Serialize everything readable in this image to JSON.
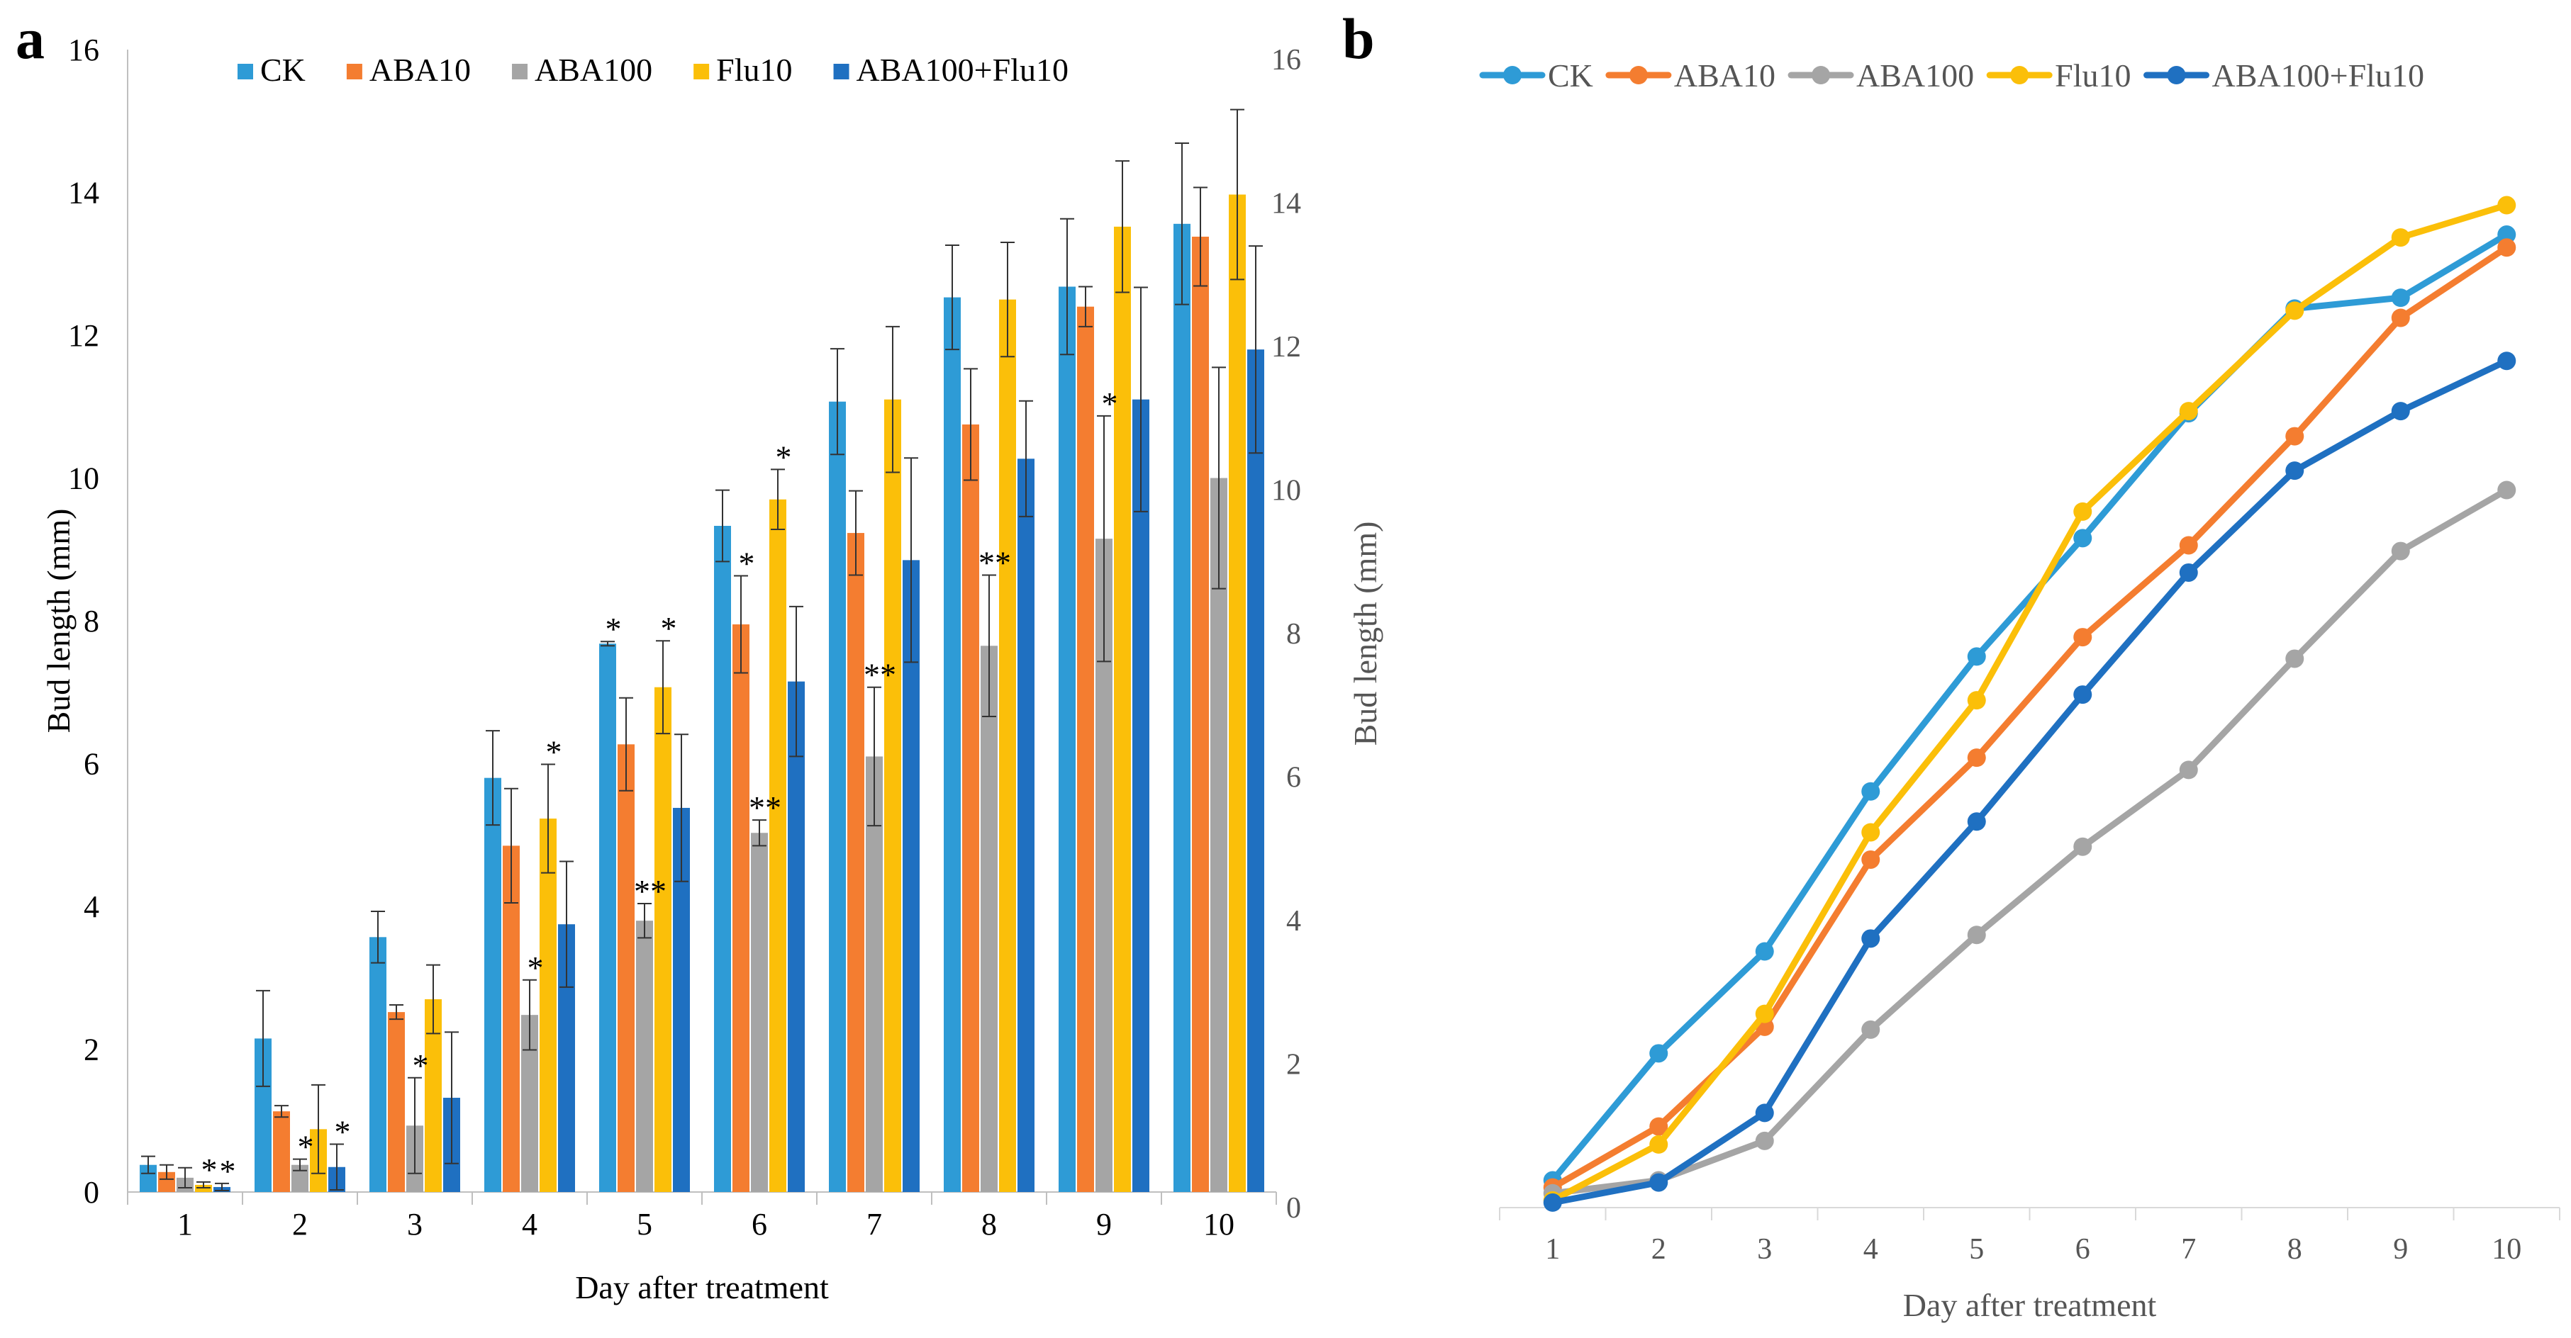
{
  "panels": {
    "a": {
      "letter": "a"
    },
    "b": {
      "letter": "b"
    }
  },
  "colors": {
    "CK": "#2e9bd6",
    "ABA10": "#f47d30",
    "ABA100": "#a5a5a5",
    "Flu10": "#fbbf09",
    "ABA100+Flu10": "#1f70c1"
  },
  "chart_data": [
    {
      "type": "bar",
      "title": "",
      "xlabel": "Day after treatment",
      "ylabel": "Bud length (mm)",
      "ylim": [
        0,
        16
      ],
      "yticks": [
        "0",
        "2",
        "4",
        "6",
        "8",
        "10",
        "12",
        "14",
        "16"
      ],
      "categories": [
        "1",
        "2",
        "3",
        "4",
        "5",
        "6",
        "7",
        "8",
        "9",
        "10"
      ],
      "legend": [
        "CK",
        "ABA10",
        "ABA100",
        "Flu10",
        "ABA100+Flu10"
      ],
      "legend_position": "top",
      "series": [
        {
          "name": "CK",
          "values": [
            0.38,
            2.15,
            3.57,
            5.8,
            7.68,
            9.33,
            11.07,
            12.53,
            12.68,
            13.56
          ],
          "errors": [
            0.12,
            0.67,
            0.36,
            0.66,
            0.03,
            0.5,
            0.74,
            0.73,
            0.95,
            1.13
          ]
        },
        {
          "name": "ABA10",
          "values": [
            0.28,
            1.13,
            2.52,
            4.85,
            6.27,
            7.95,
            9.23,
            10.75,
            12.4,
            13.38
          ],
          "errors": [
            0.1,
            0.08,
            0.1,
            0.8,
            0.65,
            0.68,
            0.59,
            0.78,
            0.28,
            0.69
          ]
        },
        {
          "name": "ABA100",
          "values": [
            0.2,
            0.38,
            0.93,
            2.48,
            3.8,
            5.03,
            6.1,
            7.65,
            9.15,
            10.0
          ],
          "errors": [
            0.14,
            0.08,
            0.67,
            0.49,
            0.24,
            0.18,
            0.97,
            0.99,
            1.72,
            1.55
          ]
        },
        {
          "name": "Flu10",
          "values": [
            0.1,
            0.88,
            2.7,
            5.23,
            7.07,
            9.7,
            11.1,
            12.5,
            13.52,
            13.97
          ],
          "errors": [
            0.04,
            0.62,
            0.48,
            0.76,
            0.65,
            0.42,
            1.02,
            0.8,
            0.92,
            1.19
          ]
        },
        {
          "name": "ABA100+Flu10",
          "values": [
            0.07,
            0.35,
            1.32,
            3.75,
            5.38,
            7.15,
            8.85,
            10.27,
            11.1,
            11.8
          ],
          "errors": [
            0.05,
            0.32,
            0.92,
            0.88,
            1.03,
            1.05,
            1.43,
            0.81,
            1.57,
            1.45
          ]
        }
      ],
      "annotations": [
        {
          "day": "1",
          "series": "Flu10",
          "text": "*"
        },
        {
          "day": "1",
          "series": "ABA100+Flu10",
          "text": "*"
        },
        {
          "day": "2",
          "series": "ABA100",
          "text": "*"
        },
        {
          "day": "2",
          "series": "ABA100+Flu10",
          "text": "*"
        },
        {
          "day": "3",
          "series": "ABA100",
          "text": "*"
        },
        {
          "day": "4",
          "series": "ABA100",
          "text": "*"
        },
        {
          "day": "4",
          "series": "Flu10",
          "text": "*"
        },
        {
          "day": "5",
          "series": "CK",
          "text": "*"
        },
        {
          "day": "5",
          "series": "ABA100",
          "text": "**"
        },
        {
          "day": "5",
          "series": "Flu10",
          "text": "*"
        },
        {
          "day": "6",
          "series": "ABA10",
          "text": "*"
        },
        {
          "day": "6",
          "series": "ABA100",
          "text": "**"
        },
        {
          "day": "6",
          "series": "Flu10",
          "text": "*"
        },
        {
          "day": "7",
          "series": "ABA100",
          "text": "**"
        },
        {
          "day": "8",
          "series": "ABA100",
          "text": "**"
        },
        {
          "day": "9",
          "series": "ABA100",
          "text": "*"
        }
      ]
    },
    {
      "type": "line",
      "title": "",
      "xlabel": "Day after treatment",
      "ylabel": "Bud length (mm)",
      "ylim": [
        0,
        16
      ],
      "yticks": [
        "0",
        "2",
        "4",
        "6",
        "8",
        "10",
        "12",
        "14",
        "16"
      ],
      "x": [
        "1",
        "2",
        "3",
        "4",
        "5",
        "6",
        "7",
        "8",
        "9",
        "10"
      ],
      "legend": [
        "CK",
        "ABA10",
        "ABA100",
        "Flu10",
        "ABA100+Flu10"
      ],
      "legend_position": "top",
      "series": [
        {
          "name": "CK",
          "values": [
            0.38,
            2.15,
            3.57,
            5.8,
            7.68,
            9.33,
            11.07,
            12.53,
            12.68,
            13.56
          ]
        },
        {
          "name": "ABA10",
          "values": [
            0.28,
            1.13,
            2.52,
            4.85,
            6.27,
            7.95,
            9.23,
            10.75,
            12.4,
            13.38
          ]
        },
        {
          "name": "ABA100",
          "values": [
            0.2,
            0.38,
            0.93,
            2.48,
            3.8,
            5.03,
            6.1,
            7.65,
            9.15,
            10.0
          ]
        },
        {
          "name": "Flu10",
          "values": [
            0.1,
            0.88,
            2.7,
            5.23,
            7.07,
            9.7,
            11.1,
            12.5,
            13.52,
            13.97
          ]
        },
        {
          "name": "ABA100+Flu10",
          "values": [
            0.07,
            0.35,
            1.32,
            3.75,
            5.38,
            7.15,
            8.85,
            10.27,
            11.1,
            11.8
          ]
        }
      ]
    }
  ]
}
